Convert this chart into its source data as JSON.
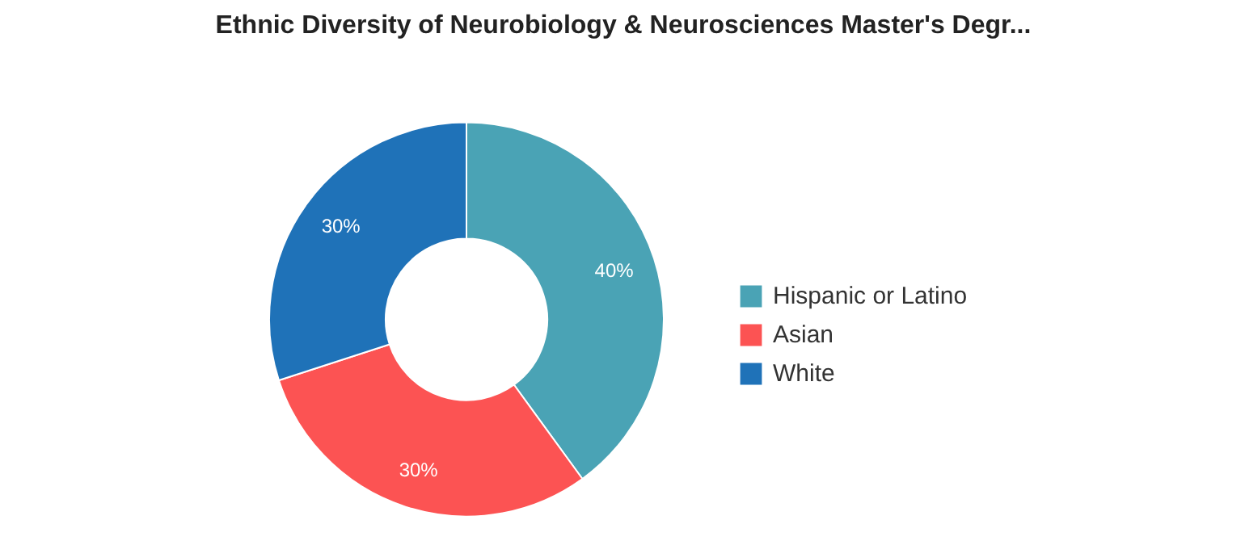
{
  "chart_data": {
    "type": "donut",
    "title": "Ethnic Diversity of Neurobiology & Neurosciences Master's Degr...",
    "categories": [
      "Hispanic or Latino",
      "Asian",
      "White"
    ],
    "values": [
      40,
      30,
      30
    ],
    "colors": [
      "#4aa3b5",
      "#fc5353",
      "#1f72b8"
    ],
    "value_labels": [
      "40%",
      "30%",
      "30%"
    ],
    "legend": "right"
  }
}
